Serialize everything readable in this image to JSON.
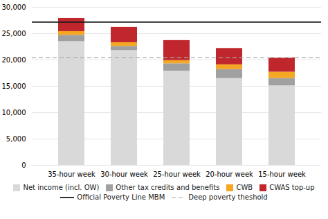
{
  "chart_data": {
    "type": "bar",
    "stacked": true,
    "categories": [
      "35-hour week",
      "30-hour week",
      "25-hour week",
      "20-hour week",
      "15-hour week"
    ],
    "series": [
      {
        "name": "Net income (incl. OW)",
        "color": "#d9d9d9",
        "values": [
          23500,
          21800,
          17900,
          16500,
          15100
        ]
      },
      {
        "name": "Other tax credits and benefits",
        "color": "#a0a0a0",
        "values": [
          1200,
          800,
          1400,
          1700,
          1400
        ]
      },
      {
        "name": "CWB",
        "color": "#f5a623",
        "values": [
          700,
          700,
          600,
          900,
          1200
        ]
      },
      {
        "name": "CWAS top-up",
        "color": "#c0272d",
        "values": [
          2500,
          2900,
          3800,
          3100,
          2700
        ]
      }
    ],
    "reference_lines": [
      {
        "name": "Official Poverty Line MBM",
        "value": 27200,
        "color": "#1a1a1a",
        "line_style": "solid"
      },
      {
        "name": "Deep poverty theshold",
        "value": 20400,
        "color": "#aaaaaa",
        "line_style": "dashed"
      }
    ],
    "ylim": [
      0,
      30000
    ],
    "yticks": [
      0,
      {
        "value": 5000,
        "label": "5,000"
      },
      {
        "value": 10000,
        "label": "10,000"
      },
      {
        "value": 15000,
        "label": "15,000"
      },
      {
        "value": 20000,
        "label": "20,000"
      },
      {
        "value": 25000,
        "label": "25,000"
      },
      {
        "value": 30000,
        "label": "30,000"
      }
    ],
    "grid": true,
    "legend": "bottom"
  }
}
